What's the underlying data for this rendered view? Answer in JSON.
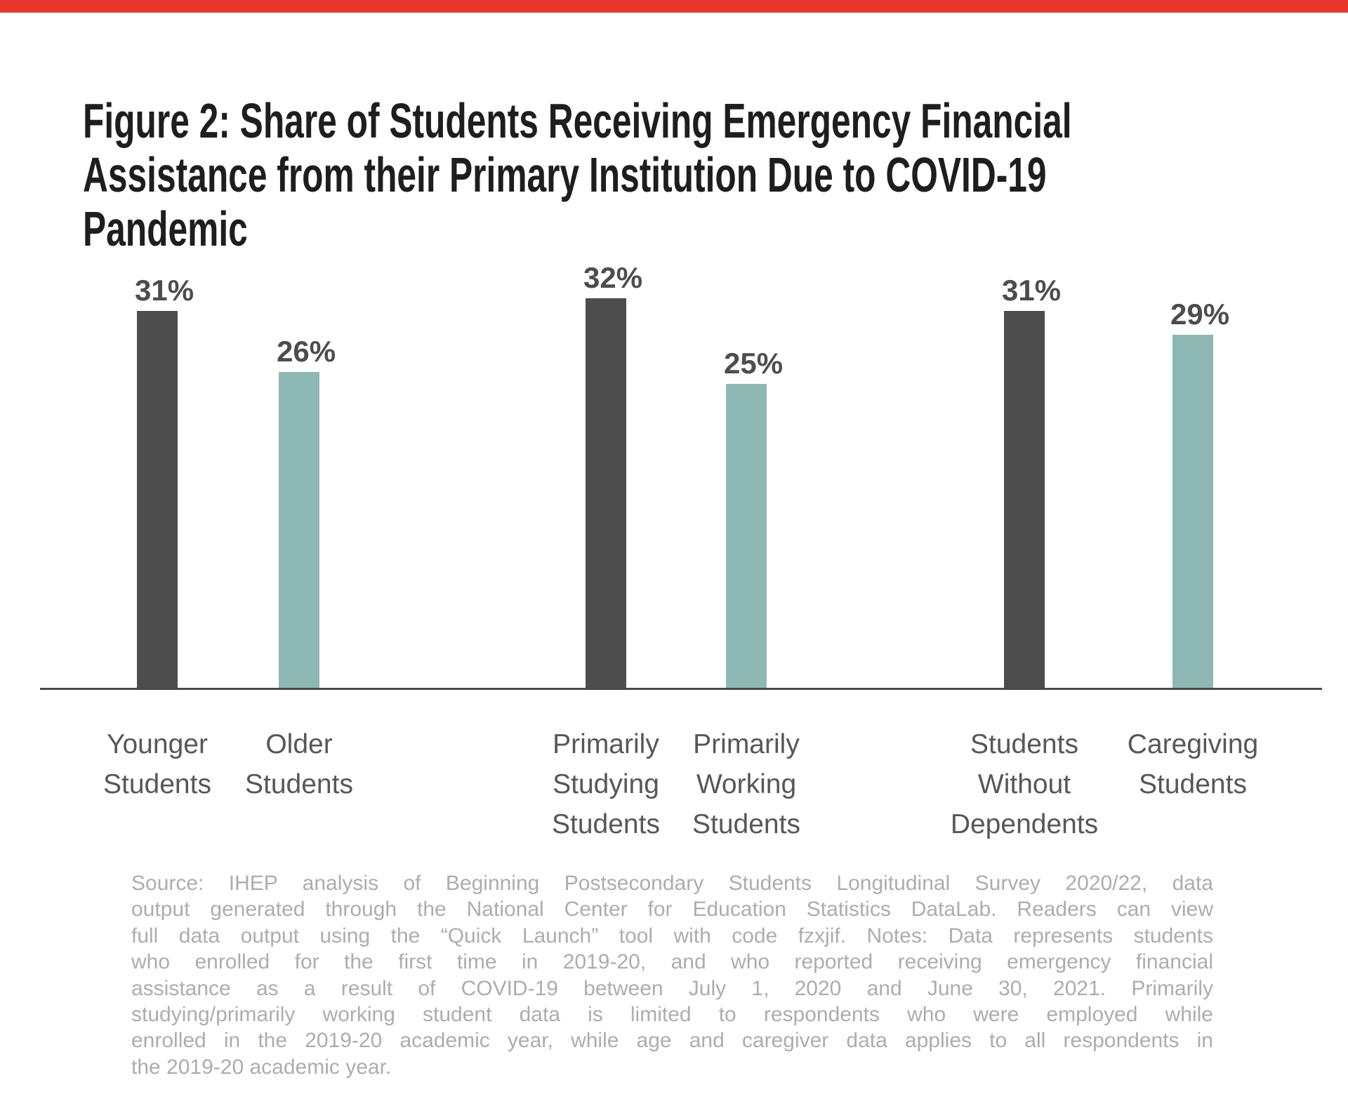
{
  "accent": {
    "top_bar_color": "#e8362d"
  },
  "title": {
    "lines": [
      "Figure 2: Share of Students Receiving Emergency Financial",
      "Assistance from their Primary Institution Due to COVID-19",
      "Pandemic"
    ]
  },
  "chart_data": {
    "type": "bar",
    "unit": "%",
    "title": "Figure 2: Share of Students Receiving Emergency Financial Assistance from their Primary Institution Due to COVID-19 Pandemic",
    "xlabel": "",
    "ylabel": "",
    "ylim": [
      0,
      35
    ],
    "grid": false,
    "legend": null,
    "categories": [
      "Younger Students",
      "Older Students",
      "Primarily Studying Students",
      "Primarily Working Students",
      "Students Without Dependents",
      "Caregiving Students"
    ],
    "values": [
      31,
      26,
      32,
      25,
      31,
      29
    ],
    "data_labels": [
      "31%",
      "26%",
      "32%",
      "25%",
      "31%",
      "29%"
    ],
    "colors": {
      "dark": "#4d4d4d",
      "teal": "#8db8b4"
    },
    "bars": [
      {
        "label_lines": [
          "Younger",
          "Students"
        ],
        "value": 31,
        "color": "dark"
      },
      {
        "label_lines": [
          "Older",
          "Students"
        ],
        "value": 26,
        "color": "teal"
      },
      {
        "label_lines": [
          "Primarily",
          "Studying",
          "Students"
        ],
        "value": 32,
        "color": "dark"
      },
      {
        "label_lines": [
          "Primarily",
          "Working",
          "Students"
        ],
        "value": 25,
        "color": "teal"
      },
      {
        "label_lines": [
          "Students",
          "Without",
          "Dependents"
        ],
        "value": 31,
        "color": "dark"
      },
      {
        "label_lines": [
          "Caregiving",
          "Students"
        ],
        "value": 29,
        "color": "teal"
      }
    ]
  },
  "source": {
    "lines": [
      "Source: IHEP analysis of Beginning Postsecondary Students Longitudinal Survey 2020/22, data",
      "output generated through the National Center for Education Statistics DataLab. Readers can view",
      "full data output using the “Quick Launch” tool with code fzxjif. Notes: Data represents students",
      "who enrolled for the first time in 2019-20, and who reported receiving emergency financial",
      "assistance as a result of COVID-19 between July 1, 2020 and June 30, 2021. Primarily",
      "studying/primarily working student data is limited to respondents who were employed while",
      "enrolled in the 2019-20 academic year, while age and caregiver data applies to all respondents in",
      "the 2019-20 academic year."
    ]
  }
}
